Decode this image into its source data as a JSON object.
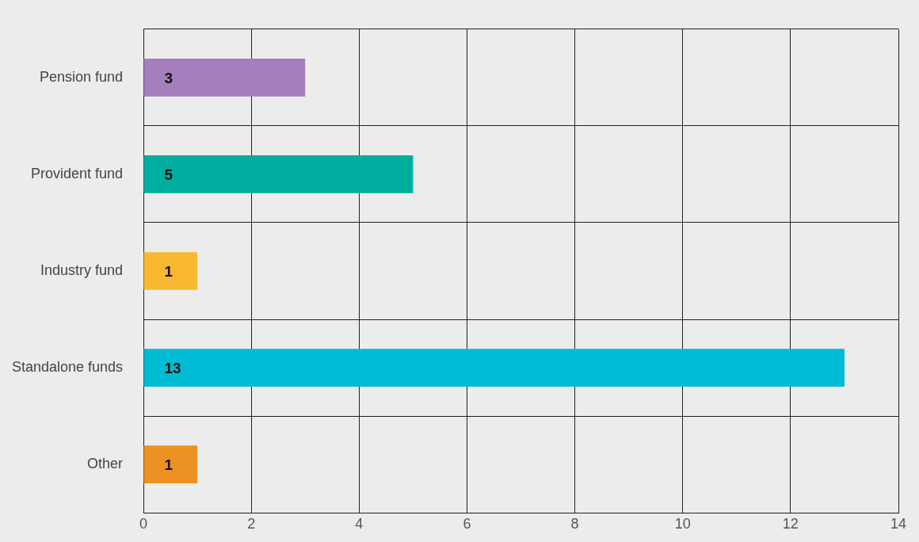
{
  "chart_data": {
    "type": "bar",
    "orientation": "horizontal",
    "categories": [
      "Pension fund",
      "Provident fund",
      "Industry fund",
      "Standalone funds",
      "Other"
    ],
    "values": [
      3,
      5,
      1,
      13,
      1
    ],
    "colors": [
      "#a47fbb",
      "#00ae9f",
      "#f9b831",
      "#00bcd4",
      "#ec9023"
    ],
    "xlim": [
      0,
      14
    ],
    "xticks": [
      0,
      2,
      4,
      6,
      8,
      10,
      12,
      14
    ],
    "grid": true,
    "data_labels": true,
    "legend": false
  }
}
